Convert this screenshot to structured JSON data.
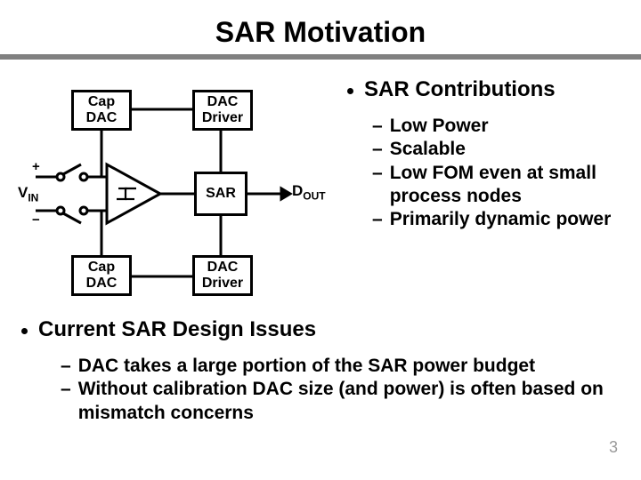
{
  "title": "SAR Motivation",
  "page_number": "3",
  "colors": {
    "rule": "#808080",
    "text": "#000000",
    "page_num": "#999999",
    "box_border": "#000000"
  },
  "contributions": {
    "heading": "SAR Contributions",
    "items": [
      "Low Power",
      "Scalable",
      "Low FOM even at small process nodes",
      "Primarily dynamic power"
    ]
  },
  "issues": {
    "heading": "Current SAR Design Issues",
    "items": [
      "DAC takes a large portion of the SAR power budget",
      "Without calibration DAC size (and power) is often based on mismatch concerns"
    ]
  },
  "diagram": {
    "labels": {
      "vin": "V",
      "vin_sub": "IN",
      "dout": "D",
      "dout_sub": "OUT",
      "plus": "+",
      "minus": "−"
    },
    "boxes": {
      "cap_dac_top": "Cap\nDAC",
      "cap_dac_bot": "Cap\nDAC",
      "dac_driver_top": "DAC\nDriver",
      "dac_driver_bot": "DAC\nDriver",
      "sar": "SAR"
    }
  }
}
